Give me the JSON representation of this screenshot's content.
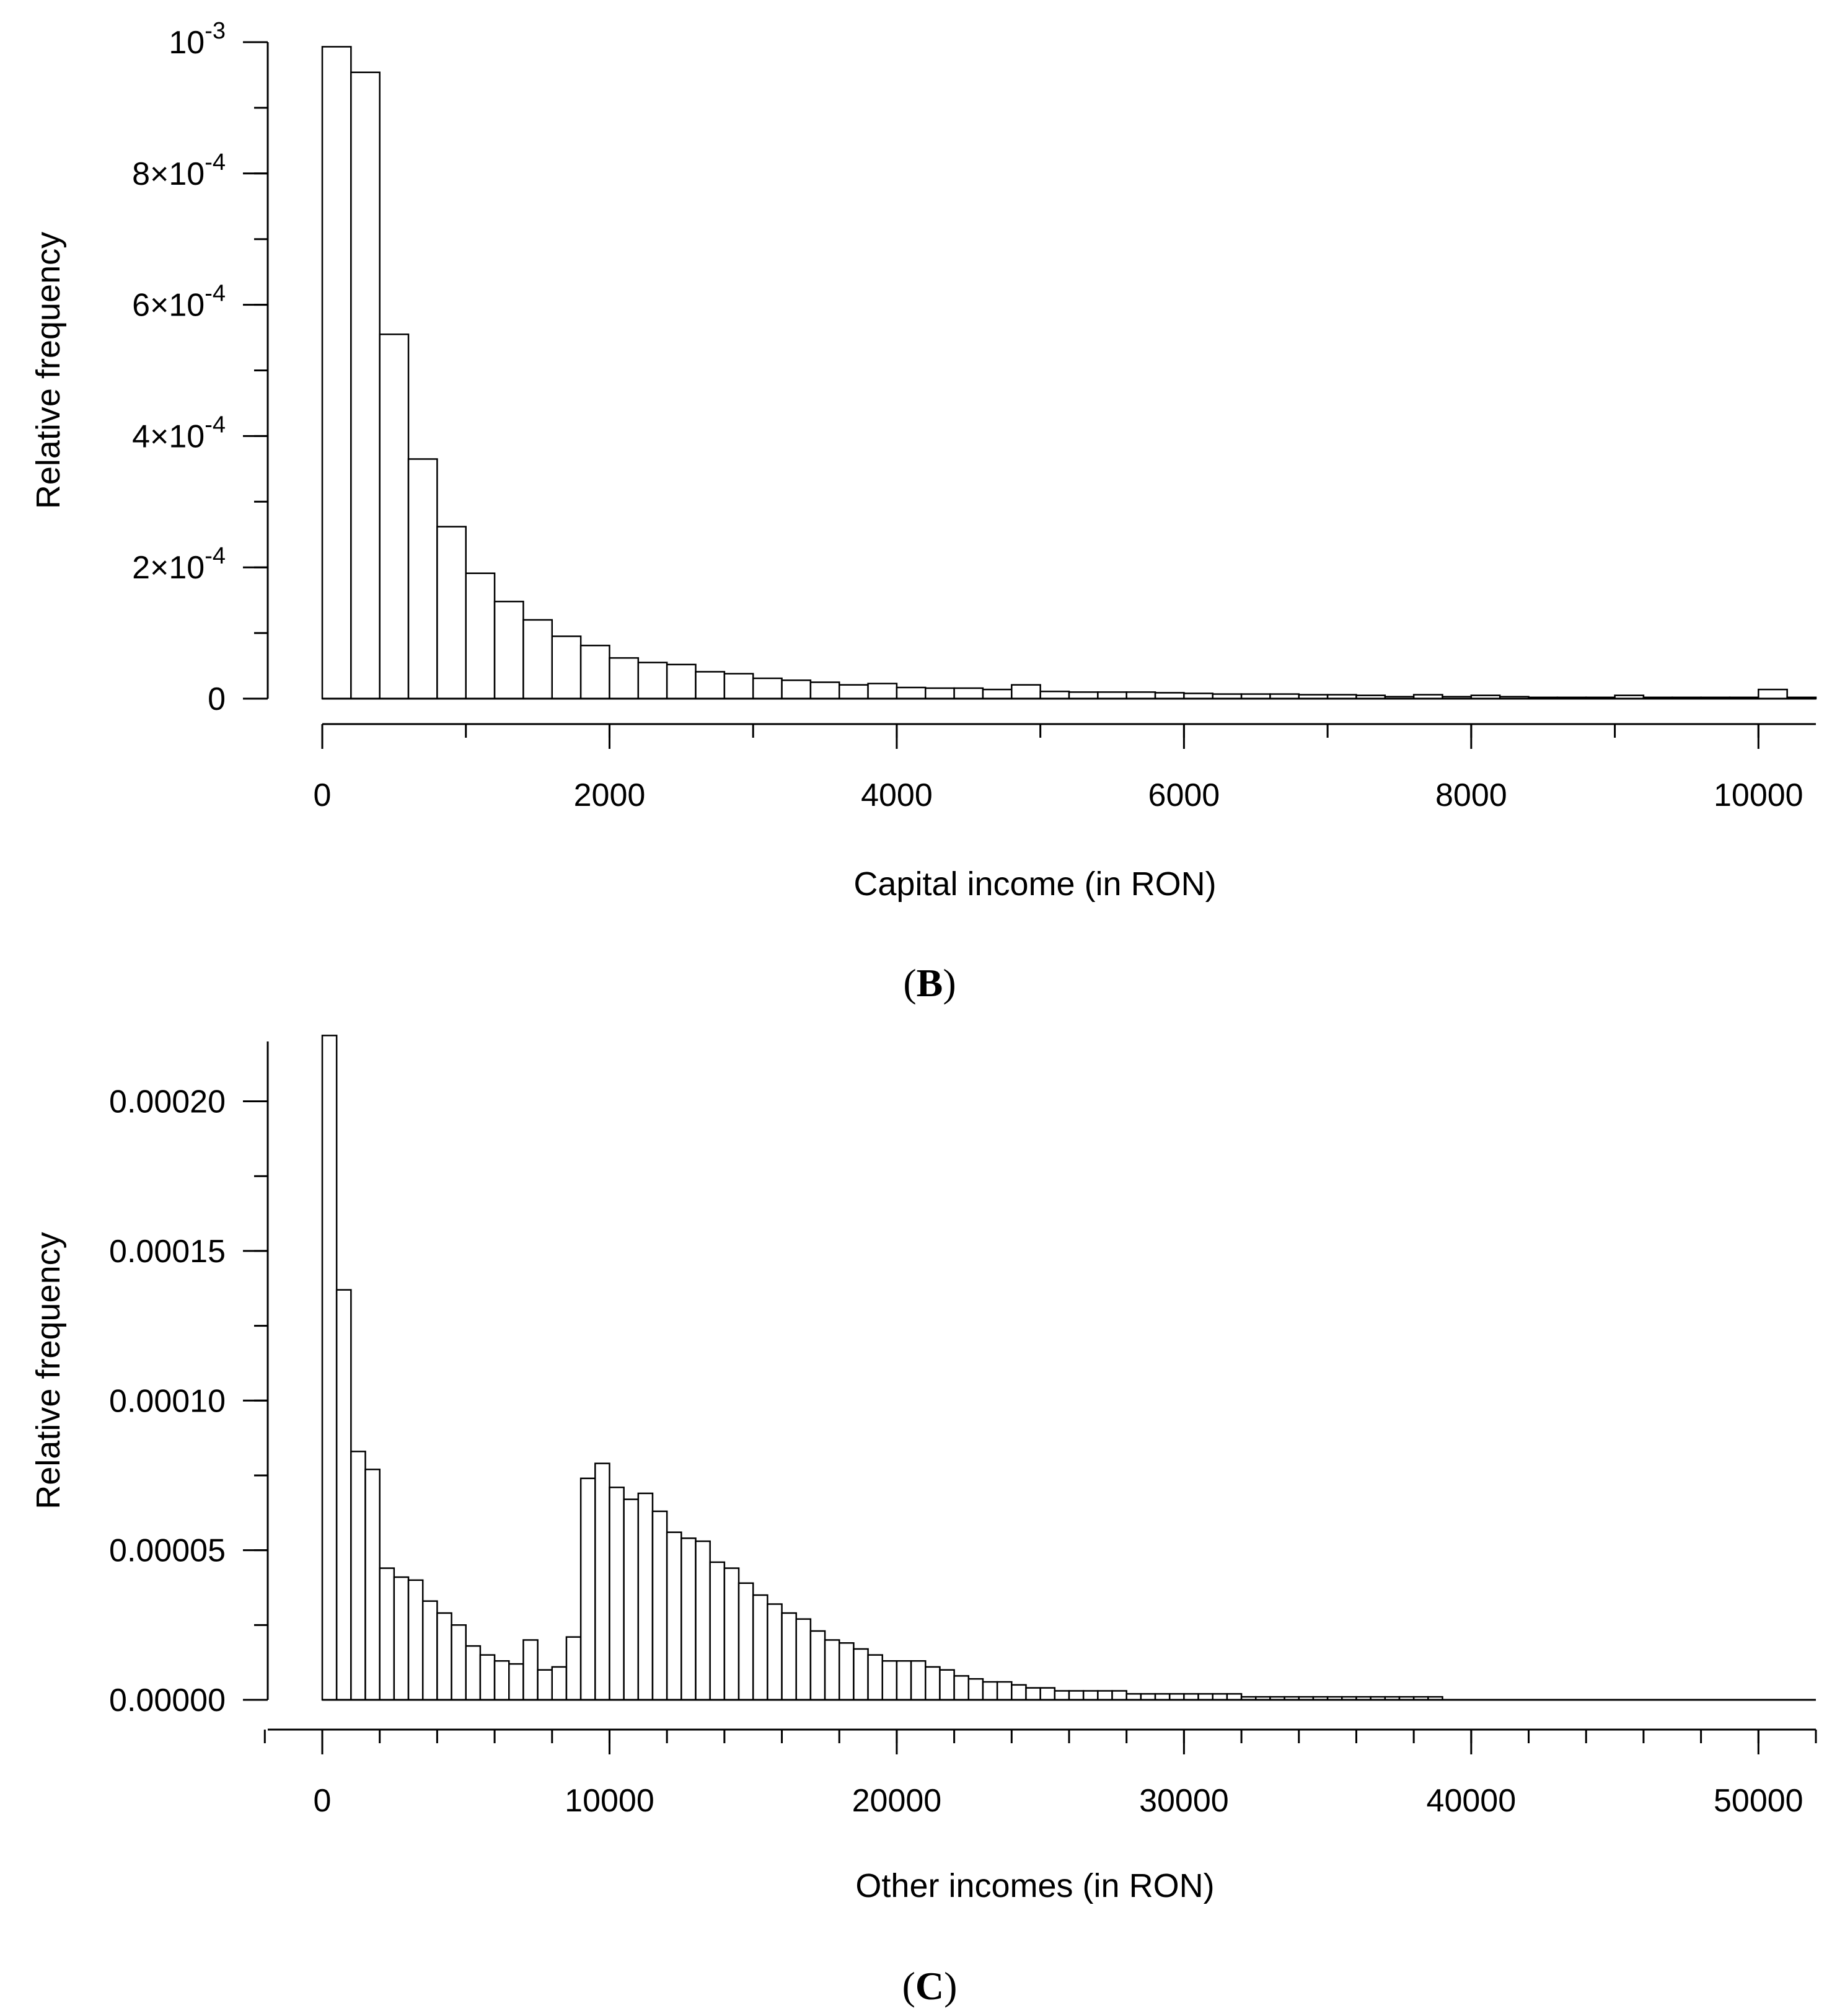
{
  "chart_data": [
    {
      "type": "bar",
      "title": "",
      "panel_label": "B",
      "xlabel": "Capital income (in RON)",
      "ylabel": "Relative frequency",
      "xlim": [
        0,
        10400
      ],
      "ylim": [
        0,
        0.001
      ],
      "bin_width": 200,
      "x_ticks": [
        0,
        2000,
        4000,
        6000,
        8000,
        10000
      ],
      "x_tick_labels": [
        "0",
        "2000",
        "4000",
        "6000",
        "8000",
        "10000"
      ],
      "x_minor_step": 1000,
      "y_ticks": [
        {
          "value": 0.001,
          "base": "10",
          "exp": "-3"
        },
        {
          "value": 0.0008,
          "base": "8×10",
          "exp": "-4"
        },
        {
          "value": 0.0006,
          "base": "6×10",
          "exp": "-4"
        },
        {
          "value": 0.0004,
          "base": "4×10",
          "exp": "-4"
        },
        {
          "value": 0.0002,
          "base": "2×10",
          "exp": "-4"
        },
        {
          "value": 0,
          "base": "0",
          "exp": ""
        }
      ],
      "y_minor_step": 0.0001,
      "values": [
        0.000993,
        0.000954,
        0.000555,
        0.000365,
        0.000262,
        0.000191,
        0.000148,
        0.00012,
        9.5e-05,
        8.1e-05,
        6.2e-05,
        5.5e-05,
        5.2e-05,
        4.1e-05,
        3.8e-05,
        3.1e-05,
        2.8e-05,
        2.5e-05,
        2.1e-05,
        2.3e-05,
        1.7e-05,
        1.6e-05,
        1.6e-05,
        1.4e-05,
        2.1e-05,
        1.1e-05,
        1e-05,
        1e-05,
        1e-05,
        9e-06,
        8e-06,
        7e-06,
        7e-06,
        7e-06,
        6e-06,
        6e-06,
        5e-06,
        3e-06,
        6e-06,
        3e-06,
        5e-06,
        3e-06,
        2e-06,
        2e-06,
        2e-06,
        5e-06,
        2e-06,
        2e-06,
        2e-06,
        2e-06,
        1.4e-05,
        2e-06
      ]
    },
    {
      "type": "bar",
      "title": "",
      "panel_label": "C",
      "xlabel": "Other incomes (in RON)",
      "ylabel": "Relative frequency",
      "xlim": [
        0,
        52000
      ],
      "ylim": [
        0,
        0.00022
      ],
      "bin_width": 500,
      "x_ticks": [
        0,
        10000,
        20000,
        30000,
        40000,
        50000
      ],
      "x_tick_labels": [
        "0",
        "10000",
        "20000",
        "30000",
        "40000",
        "50000"
      ],
      "x_minor_step": 2000,
      "y_ticks": [
        {
          "value": 0.0002,
          "base": "0.00020",
          "exp": ""
        },
        {
          "value": 0.00015,
          "base": "0.00015",
          "exp": ""
        },
        {
          "value": 0.0001,
          "base": "0.00010",
          "exp": ""
        },
        {
          "value": 5e-05,
          "base": "0.00005",
          "exp": ""
        },
        {
          "value": 0,
          "base": "0.00000",
          "exp": ""
        }
      ],
      "y_minor_step": 2.5e-05,
      "values": [
        0.000222,
        0.000137,
        8.3e-05,
        7.7e-05,
        4.4e-05,
        4.1e-05,
        4e-05,
        3.3e-05,
        2.9e-05,
        2.5e-05,
        1.8e-05,
        1.5e-05,
        1.3e-05,
        1.2e-05,
        2e-05,
        1e-05,
        1.1e-05,
        2.1e-05,
        7.4e-05,
        7.9e-05,
        7.1e-05,
        6.7e-05,
        6.9e-05,
        6.3e-05,
        5.6e-05,
        5.4e-05,
        5.3e-05,
        4.6e-05,
        4.4e-05,
        3.9e-05,
        3.5e-05,
        3.2e-05,
        2.9e-05,
        2.7e-05,
        2.3e-05,
        2e-05,
        1.9e-05,
        1.7e-05,
        1.5e-05,
        1.3e-05,
        1.3e-05,
        1.3e-05,
        1.1e-05,
        1e-05,
        8e-06,
        7e-06,
        6e-06,
        6e-06,
        5e-06,
        4e-06,
        4e-06,
        3e-06,
        3e-06,
        3e-06,
        3e-06,
        3e-06,
        2e-06,
        2e-06,
        2e-06,
        2e-06,
        2e-06,
        2e-06,
        2e-06,
        2e-06,
        1e-06,
        1e-06,
        1e-06,
        1e-06,
        1e-06,
        1e-06,
        1e-06,
        1e-06,
        1e-06,
        1e-06,
        1e-06,
        1e-06,
        1e-06,
        1e-06
      ]
    }
  ]
}
